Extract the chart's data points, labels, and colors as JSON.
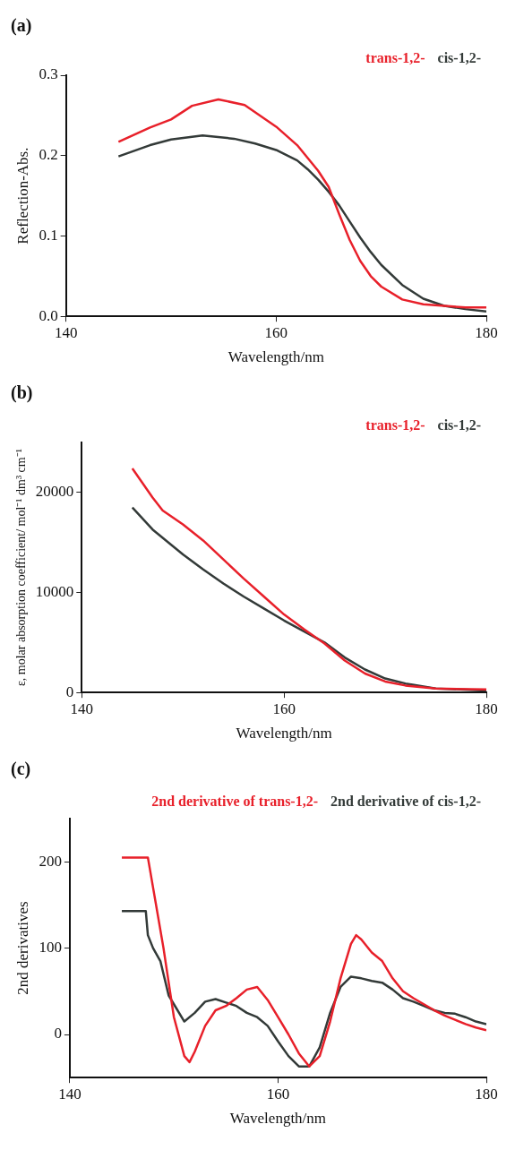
{
  "chart_data": [
    {
      "type": "line",
      "title": "(a)",
      "xlabel": "Wavelength/nm",
      "ylabel": "Reflection-Abs.",
      "xlim": [
        140,
        180
      ],
      "xticks": [
        140,
        160,
        180
      ],
      "ylim": [
        0,
        0.3
      ],
      "yticks": [
        {
          "value": 0,
          "label": "0.0"
        },
        {
          "value": 0.1,
          "label": "0.1"
        },
        {
          "value": 0.2,
          "label": "0.2"
        },
        {
          "value": 0.3,
          "label": "0.3"
        }
      ],
      "legend": "top right",
      "grid": false,
      "marker": "none",
      "line_style": "solid",
      "series": [
        {
          "name": "trans-1,2-",
          "color": "#e8202a",
          "x": [
            145,
            148,
            150,
            152,
            154.5,
            157,
            160,
            162,
            164,
            165,
            166,
            167,
            168,
            169,
            170,
            172,
            174,
            176,
            178,
            180
          ],
          "values": [
            0.217,
            0.235,
            0.245,
            0.262,
            0.27,
            0.263,
            0.236,
            0.213,
            0.181,
            0.161,
            0.127,
            0.095,
            0.069,
            0.05,
            0.037,
            0.021,
            0.015,
            0.013,
            0.011,
            0.011
          ]
        },
        {
          "name": "cis-1,2-",
          "color": "#333a38",
          "x": [
            145,
            148,
            150,
            153,
            156,
            158,
            160,
            162,
            163,
            164,
            165,
            166,
            167,
            168,
            169,
            170,
            172,
            174,
            176,
            178,
            180
          ],
          "values": [
            0.199,
            0.213,
            0.22,
            0.225,
            0.221,
            0.215,
            0.207,
            0.194,
            0.183,
            0.17,
            0.155,
            0.138,
            0.118,
            0.098,
            0.08,
            0.064,
            0.039,
            0.022,
            0.013,
            0.009,
            0.006
          ]
        }
      ]
    },
    {
      "type": "line",
      "title": "(b)",
      "xlabel": "Wavelength/nm",
      "ylabel": "ε, molar absorption coefficient/ mol⁻¹ dm³ cm⁻¹",
      "xlim": [
        140,
        180
      ],
      "xticks": [
        140,
        160,
        180
      ],
      "ylim": [
        0,
        25000
      ],
      "yticks": [
        0,
        10000,
        20000
      ],
      "legend": "top right",
      "grid": false,
      "marker": "none",
      "line_style": "solid",
      "series": [
        {
          "name": "trans-1,2-",
          "color": "#e8202a",
          "x": [
            145,
            147,
            148,
            150,
            152,
            154,
            156,
            158,
            160,
            162,
            164,
            166,
            168,
            170,
            172,
            175,
            180
          ],
          "values": [
            22400,
            19500,
            18200,
            16800,
            15200,
            13300,
            11400,
            9600,
            7800,
            6300,
            4900,
            3200,
            1900,
            1100,
            700,
            400,
            300
          ]
        },
        {
          "name": "cis-1,2-",
          "color": "#333a38",
          "x": [
            145,
            147,
            150,
            152,
            154,
            156,
            158,
            160,
            162,
            164,
            166,
            168,
            170,
            172,
            175,
            180
          ],
          "values": [
            18500,
            16300,
            13800,
            12300,
            10900,
            9600,
            8400,
            7200,
            6100,
            5000,
            3500,
            2300,
            1400,
            900,
            400,
            200
          ]
        }
      ]
    },
    {
      "type": "line",
      "title": "(c)",
      "xlabel": "Wavelength/nm",
      "ylabel": "2nd derivatives",
      "xlim": [
        140,
        180
      ],
      "xticks": [
        140,
        160,
        180
      ],
      "ylim": [
        -50,
        250
      ],
      "yticks": [
        0,
        100,
        200
      ],
      "legend": "top right",
      "grid": false,
      "marker": "none",
      "line_style": "solid",
      "series": [
        {
          "name": "2nd derivative of trans-1,2-",
          "color": "#e8202a",
          "x": [
            145,
            147.5,
            148,
            149,
            150,
            151,
            151.5,
            152,
            153,
            154,
            155,
            156,
            157,
            158,
            159,
            160,
            161,
            162,
            163,
            164,
            165,
            166,
            167,
            167.5,
            168,
            169,
            170,
            171,
            172,
            173,
            174,
            175,
            176,
            177,
            178,
            179,
            180
          ],
          "values": [
            205,
            205,
            170,
            100,
            20,
            -25,
            -32,
            -20,
            10,
            28,
            33,
            42,
            52,
            55,
            40,
            20,
            0,
            -22,
            -37,
            -25,
            15,
            65,
            105,
            115,
            110,
            95,
            85,
            65,
            50,
            42,
            35,
            28,
            22,
            17,
            12,
            8,
            5
          ]
        },
        {
          "name": "2nd derivative of cis-1,2-",
          "color": "#333a38",
          "x": [
            145,
            147.3,
            147.5,
            148,
            148.7,
            149.5,
            150,
            151,
            152,
            153,
            154,
            155,
            156,
            157,
            158,
            159,
            160,
            161,
            162,
            163,
            164,
            165,
            166,
            167,
            168,
            169,
            170,
            171,
            172,
            173,
            174,
            175,
            176,
            177,
            178,
            179,
            180
          ],
          "values": [
            143,
            143,
            115,
            100,
            85,
            45,
            35,
            15,
            25,
            38,
            41,
            37,
            33,
            25,
            20,
            10,
            -8,
            -25,
            -37,
            -37,
            -15,
            25,
            55,
            67,
            65,
            62,
            60,
            52,
            42,
            38,
            33,
            28,
            25,
            24,
            20,
            15,
            12
          ]
        }
      ]
    }
  ]
}
